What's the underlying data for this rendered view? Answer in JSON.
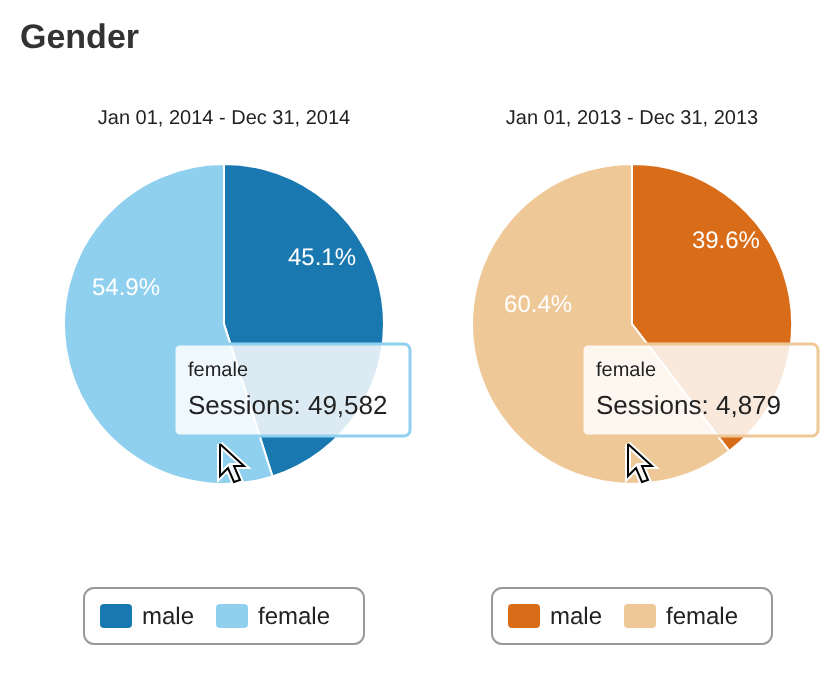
{
  "chart_data": [
    {
      "type": "pie",
      "title": "Gender",
      "subtitle": "Jan 01, 2014 - Dec 31, 2014",
      "categories": [
        "male",
        "female"
      ],
      "values": [
        45.1,
        54.9
      ],
      "value_labels": [
        "45.1%",
        "54.9%"
      ],
      "colors": [
        "#1a78b0",
        "#8fd0ee"
      ],
      "legend": "bottom",
      "annotations": [
        "female",
        "Sessions: 49,582"
      ]
    },
    {
      "type": "pie",
      "subtitle": "Jan 01, 2013 - Dec 31, 2013",
      "categories": [
        "male",
        "female"
      ],
      "values": [
        39.6,
        60.4
      ],
      "value_labels": [
        "39.6%",
        "60.4%"
      ],
      "colors": [
        "#d86c18",
        "#efc898"
      ],
      "legend": "bottom",
      "annotations": [
        "female",
        "Sessions: 4,879"
      ]
    }
  ]
}
